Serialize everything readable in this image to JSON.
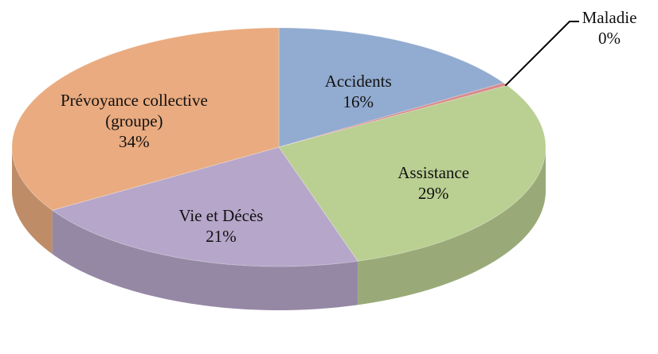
{
  "chart_data": {
    "type": "pie",
    "categories": [
      "Accidents",
      "Maladie",
      "Assistance",
      "Vie et Décès",
      "Prévoyance collective (groupe)"
    ],
    "values": [
      16,
      0.4,
      29,
      21,
      34
    ],
    "value_labels": [
      "16%",
      "0%",
      "29%",
      "21%",
      "34%"
    ],
    "colors": [
      "#92abd0",
      "#d98a8c",
      "#bacf92",
      "#b6a6c9",
      "#e9ab7f"
    ]
  }
}
